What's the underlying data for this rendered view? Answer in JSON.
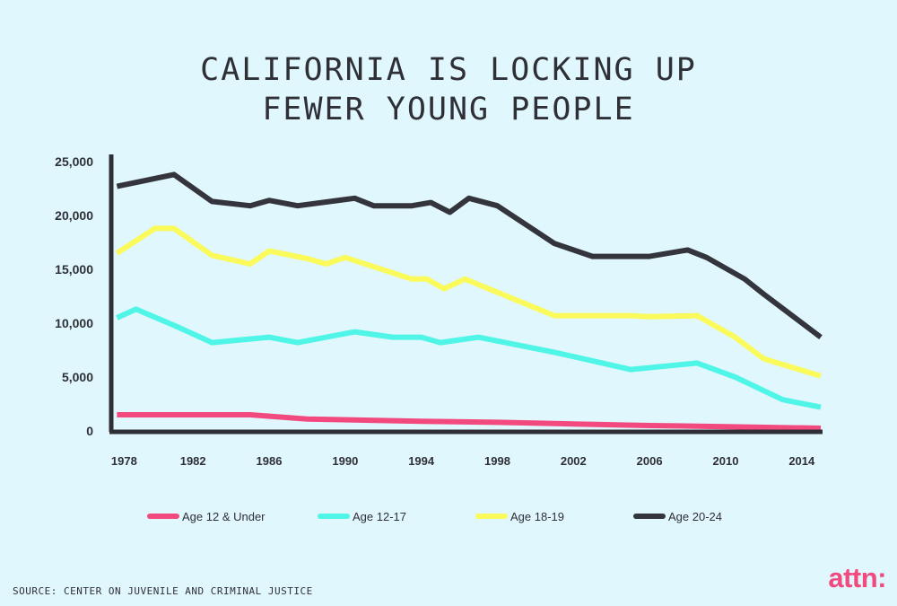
{
  "title_line1": "CALIFORNIA IS LOCKING UP",
  "title_line2": "FEWER YOUNG PEOPLE",
  "source": "SOURCE: CENTER ON JUVENILE AND CRIMINAL JUSTICE",
  "logo": "attn:",
  "colors": {
    "background": "#e0f7fd",
    "axis": "#2f2f36",
    "age_12_under": "#f24a7f",
    "age_12_17": "#4ff5e6",
    "age_18_19": "#fafa5a",
    "age_20_24": "#34343c"
  },
  "chart_data": {
    "type": "line",
    "title": "CALIFORNIA IS LOCKING UP FEWER YOUNG PEOPLE",
    "xlabel": "",
    "ylabel": "",
    "xlim": [
      1978,
      2015
    ],
    "ylim": [
      0,
      25000
    ],
    "y_ticks": [
      0,
      5000,
      10000,
      15000,
      20000,
      25000
    ],
    "y_tick_labels": [
      "0",
      "5,000",
      "10,000",
      "15,000",
      "20,000",
      "25,000"
    ],
    "x_ticks": [
      1978,
      1982,
      1986,
      1990,
      1994,
      1998,
      2002,
      2006,
      2010,
      2014
    ],
    "x_tick_labels": [
      "1978",
      "1982",
      "1986",
      "1990",
      "1994",
      "1998",
      "2002",
      "2006",
      "2010",
      "2014"
    ],
    "legend_position": "bottom",
    "series": [
      {
        "name": "Age 12 & Under",
        "color": "#f24a7f",
        "x": [
          1978,
          1980,
          1982,
          1985,
          1988,
          1991,
          1994,
          1998,
          2002,
          2006,
          2010,
          2015
        ],
        "values": [
          1500,
          1500,
          1500,
          1500,
          1100,
          1000,
          900,
          800,
          650,
          500,
          400,
          250
        ]
      },
      {
        "name": "Age 12-17",
        "color": "#4ff5e6",
        "x": [
          1978,
          1979,
          1981,
          1983,
          1986,
          1987.5,
          1990.5,
          1992.5,
          1994,
          1995,
          1997,
          2001,
          2005,
          2008.5,
          2010.5,
          2013,
          2015
        ],
        "values": [
          10500,
          11300,
          9800,
          8200,
          8700,
          8200,
          9200,
          8700,
          8700,
          8200,
          8700,
          7300,
          5700,
          6300,
          5000,
          2900,
          2200
        ]
      },
      {
        "name": "Age 18-19",
        "color": "#fafa5a",
        "x": [
          1978,
          1980,
          1981,
          1983,
          1985,
          1986,
          1988,
          1989,
          1990,
          1993.5,
          1994.3,
          1995.2,
          1996.3,
          2001,
          2005,
          2006,
          2008.5,
          2010.5,
          2012,
          2015
        ],
        "values": [
          16500,
          18800,
          18800,
          16300,
          15500,
          16700,
          16000,
          15500,
          16100,
          14100,
          14100,
          13200,
          14100,
          10700,
          10700,
          10600,
          10700,
          8700,
          6700,
          5100
        ]
      },
      {
        "name": "Age 20-24",
        "color": "#34343c",
        "x": [
          1978,
          1981,
          1983,
          1985,
          1986,
          1987.5,
          1990.5,
          1991.5,
          1993.5,
          1994.5,
          1995.5,
          1996.5,
          1998,
          2001,
          2003,
          2005,
          2006,
          2008,
          2009,
          2011,
          2012,
          2015
        ],
        "values": [
          22700,
          23800,
          21300,
          20900,
          21400,
          20900,
          21600,
          20900,
          20900,
          21200,
          20300,
          21600,
          20900,
          17400,
          16200,
          16200,
          16200,
          16800,
          16100,
          14100,
          12700,
          8700
        ]
      }
    ]
  }
}
